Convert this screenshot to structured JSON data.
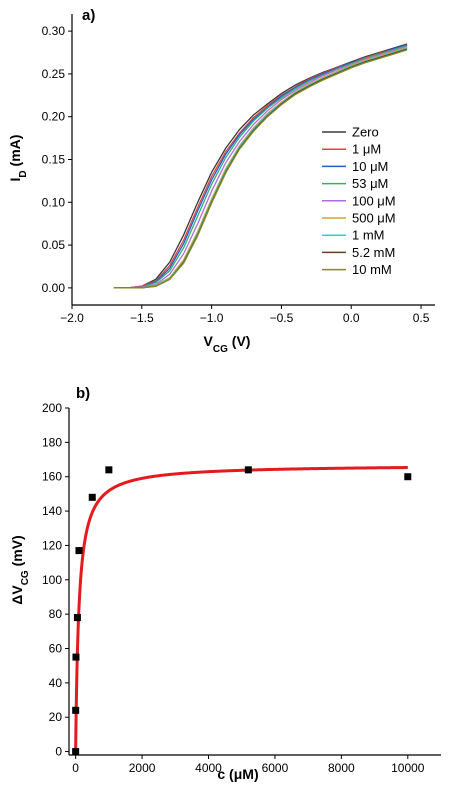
{
  "chart_data": [
    {
      "type": "line",
      "panel_label": "a)",
      "xlabel": "VCG (V)",
      "xlabel_main": "V",
      "xlabel_sub": "CG",
      "xlabel_unit": " (V)",
      "ylabel": "ID (mA)",
      "ylabel_main": "I",
      "ylabel_sub": "D",
      "ylabel_unit": " (mA)",
      "xlim": [
        -2.0,
        0.6
      ],
      "ylim": [
        -0.02,
        0.32
      ],
      "xticks": [
        -2.0,
        -1.5,
        -1.0,
        -0.5,
        0.0,
        0.5
      ],
      "xtick_labels": [
        "−2.0",
        "−1.5",
        "−1.0",
        "−0.5",
        "0.0",
        "0.5"
      ],
      "yticks": [
        0.0,
        0.05,
        0.1,
        0.15,
        0.2,
        0.25,
        0.3
      ],
      "ytick_labels": [
        "0.00",
        "0.05",
        "0.10",
        "0.15",
        "0.20",
        "0.25",
        "0.30"
      ],
      "legend_position": "right",
      "x": [
        -1.7,
        -1.6,
        -1.5,
        -1.4,
        -1.3,
        -1.2,
        -1.1,
        -1.0,
        -0.9,
        -0.8,
        -0.7,
        -0.6,
        -0.5,
        -0.4,
        -0.3,
        -0.2,
        -0.1,
        0.0,
        0.1,
        0.2,
        0.3,
        0.4
      ],
      "series": [
        {
          "name": "Zero",
          "color": "#3a3a3a",
          "values": [
            0.0,
            0.0,
            0.002,
            0.01,
            0.03,
            0.062,
            0.1,
            0.135,
            0.163,
            0.185,
            0.202,
            0.215,
            0.227,
            0.237,
            0.245,
            0.252,
            0.258,
            0.264,
            0.27,
            0.275,
            0.28,
            0.285
          ]
        },
        {
          "name": "1 μM",
          "color": "#e8413c",
          "values": [
            0.0,
            0.0,
            0.002,
            0.008,
            0.026,
            0.056,
            0.094,
            0.13,
            0.159,
            0.181,
            0.199,
            0.213,
            0.225,
            0.235,
            0.244,
            0.251,
            0.258,
            0.263,
            0.269,
            0.274,
            0.279,
            0.284
          ]
        },
        {
          "name": "10 μM",
          "color": "#1f5fd6",
          "values": [
            0.0,
            0.0,
            0.001,
            0.007,
            0.023,
            0.052,
            0.09,
            0.126,
            0.156,
            0.179,
            0.197,
            0.211,
            0.224,
            0.234,
            0.243,
            0.25,
            0.257,
            0.263,
            0.268,
            0.273,
            0.279,
            0.284
          ]
        },
        {
          "name": "53 μM",
          "color": "#2fb36b",
          "values": [
            0.0,
            0.0,
            0.001,
            0.006,
            0.02,
            0.047,
            0.084,
            0.121,
            0.152,
            0.176,
            0.195,
            0.21,
            0.222,
            0.233,
            0.242,
            0.249,
            0.256,
            0.262,
            0.268,
            0.273,
            0.278,
            0.283
          ]
        },
        {
          "name": "100 μM",
          "color": "#b36be0",
          "values": [
            0.0,
            0.0,
            0.001,
            0.004,
            0.016,
            0.04,
            0.075,
            0.113,
            0.146,
            0.171,
            0.191,
            0.207,
            0.22,
            0.231,
            0.24,
            0.248,
            0.255,
            0.261,
            0.267,
            0.272,
            0.277,
            0.282
          ]
        },
        {
          "name": "500 μM",
          "color": "#d9a32a",
          "values": [
            0.0,
            0.0,
            0.0,
            0.003,
            0.012,
            0.033,
            0.066,
            0.104,
            0.139,
            0.166,
            0.187,
            0.204,
            0.217,
            0.229,
            0.238,
            0.246,
            0.253,
            0.26,
            0.266,
            0.271,
            0.276,
            0.281
          ]
        },
        {
          "name": "1 mM",
          "color": "#35c9d6",
          "values": [
            0.0,
            0.0,
            0.0,
            0.003,
            0.011,
            0.031,
            0.064,
            0.102,
            0.137,
            0.165,
            0.186,
            0.203,
            0.216,
            0.228,
            0.237,
            0.245,
            0.252,
            0.259,
            0.265,
            0.27,
            0.275,
            0.28
          ]
        },
        {
          "name": "5.2 mM",
          "color": "#6b3b2a",
          "values": [
            0.0,
            0.0,
            0.0,
            0.002,
            0.01,
            0.03,
            0.062,
            0.1,
            0.135,
            0.163,
            0.184,
            0.201,
            0.215,
            0.227,
            0.236,
            0.244,
            0.251,
            0.258,
            0.264,
            0.269,
            0.274,
            0.279
          ]
        },
        {
          "name": "10 mM",
          "color": "#8a8a1a",
          "values": [
            0.0,
            0.0,
            0.0,
            0.002,
            0.01,
            0.029,
            0.061,
            0.099,
            0.134,
            0.162,
            0.183,
            0.2,
            0.214,
            0.226,
            0.235,
            0.243,
            0.25,
            0.257,
            0.263,
            0.268,
            0.273,
            0.278
          ]
        }
      ]
    },
    {
      "type": "scatter",
      "panel_label": "b)",
      "xlabel": "c (μM)",
      "ylabel": "ΔVCG (mV)",
      "ylabel_main": "ΔV",
      "ylabel_sub": "CG",
      "ylabel_unit": " (mV)",
      "xlim": [
        -200,
        11000
      ],
      "ylim": [
        -2,
        200
      ],
      "xticks": [
        0,
        2000,
        4000,
        6000,
        8000,
        10000
      ],
      "xtick_labels": [
        "0",
        "2000",
        "4000",
        "6000",
        "8000",
        "10000"
      ],
      "yticks": [
        0,
        20,
        40,
        60,
        80,
        100,
        120,
        140,
        160,
        180,
        200
      ],
      "ytick_labels": [
        "0",
        "20",
        "40",
        "60",
        "80",
        "100",
        "120",
        "140",
        "160",
        "180",
        "200"
      ],
      "points": {
        "x": [
          0,
          1,
          10,
          53,
          100,
          500,
          1000,
          5200,
          10000
        ],
        "y": [
          0,
          24,
          55,
          78,
          117,
          148,
          164,
          164,
          160
        ]
      },
      "fit": {
        "model": "Langmuir",
        "color": "#e41a1c",
        "vmax": 167,
        "k": 100
      }
    }
  ]
}
